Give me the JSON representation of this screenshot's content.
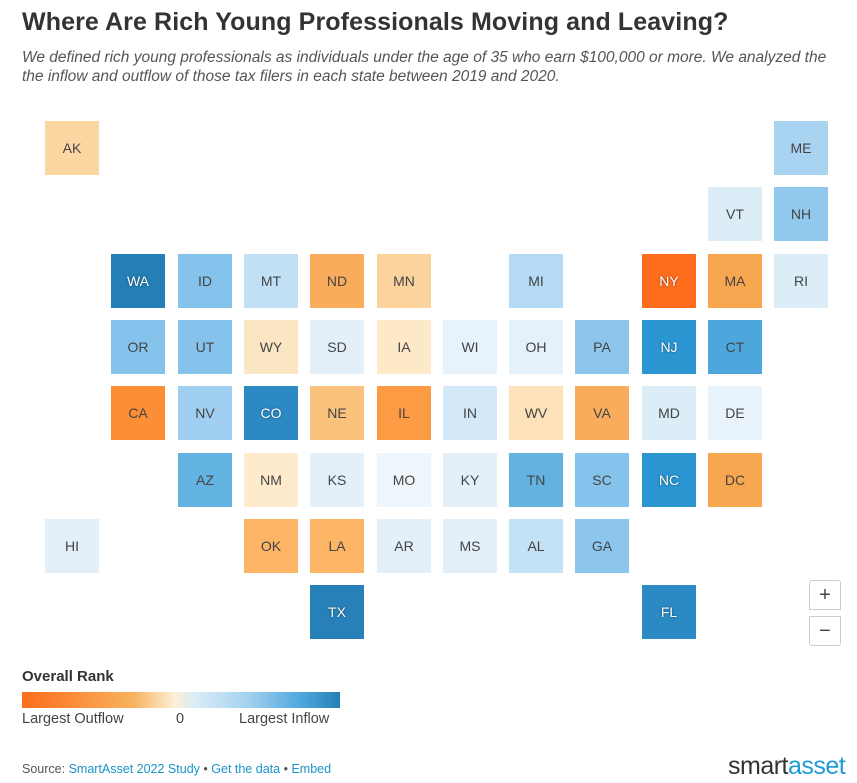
{
  "title": "Where Are Rich Young Professionals Moving and Leaving?",
  "subtitle": "We defined rich young professionals as individuals under the age of 35 who earn $100,000 or more. We analyzed the the inflow and outflow of those tax filers in each state between 2019 and 2020.",
  "chart_data": {
    "type": "heatmap",
    "title": "Where Are Rich Young Professionals Moving and Leaving?",
    "layout": "US state tile grid map",
    "color_scale": {
      "label": "Overall Rank",
      "low_label": "Largest Outflow",
      "mid_label": "0",
      "high_label": "Largest Inflow",
      "colors": [
        "#fd6d1b",
        "#f8b25e",
        "#fbf0d6",
        "#dcedf8",
        "#a8d3f1",
        "#4ea7dc",
        "#237fb5"
      ]
    },
    "states": [
      {
        "abbr": "AK",
        "row": 0,
        "col": 0,
        "color": "#fdd7a2"
      },
      {
        "abbr": "ME",
        "row": 0,
        "col": 11,
        "color": "#a8d3f1"
      },
      {
        "abbr": "VT",
        "row": 1,
        "col": 10,
        "color": "#dcedf8"
      },
      {
        "abbr": "NH",
        "row": 1,
        "col": 11,
        "color": "#91c9ee"
      },
      {
        "abbr": "WA",
        "row": 2,
        "col": 1,
        "color": "#237fb5",
        "dark": true
      },
      {
        "abbr": "ID",
        "row": 2,
        "col": 2,
        "color": "#85c3ec"
      },
      {
        "abbr": "MT",
        "row": 2,
        "col": 3,
        "color": "#c1e0f6"
      },
      {
        "abbr": "ND",
        "row": 2,
        "col": 4,
        "color": "#f9ac5b"
      },
      {
        "abbr": "MN",
        "row": 2,
        "col": 5,
        "color": "#fcd39c"
      },
      {
        "abbr": "MI",
        "row": 2,
        "col": 7,
        "color": "#b5daf5"
      },
      {
        "abbr": "NY",
        "row": 2,
        "col": 9,
        "color": "#fd6d1b",
        "dark": true
      },
      {
        "abbr": "MA",
        "row": 2,
        "col": 10,
        "color": "#f9a651"
      },
      {
        "abbr": "RI",
        "row": 2,
        "col": 11,
        "color": "#dcedf8"
      },
      {
        "abbr": "OR",
        "row": 3,
        "col": 1,
        "color": "#86c3ec"
      },
      {
        "abbr": "UT",
        "row": 3,
        "col": 2,
        "color": "#86c3ec"
      },
      {
        "abbr": "WY",
        "row": 3,
        "col": 3,
        "color": "#fbe6c4"
      },
      {
        "abbr": "SD",
        "row": 3,
        "col": 4,
        "color": "#e3f0f9"
      },
      {
        "abbr": "IA",
        "row": 3,
        "col": 5,
        "color": "#fde8c8"
      },
      {
        "abbr": "WI",
        "row": 3,
        "col": 6,
        "color": "#e7f2fa"
      },
      {
        "abbr": "OH",
        "row": 3,
        "col": 7,
        "color": "#e5f1fa"
      },
      {
        "abbr": "PA",
        "row": 3,
        "col": 8,
        "color": "#8cc6ed"
      },
      {
        "abbr": "NJ",
        "row": 3,
        "col": 9,
        "color": "#2b95d2",
        "dark": true
      },
      {
        "abbr": "CT",
        "row": 3,
        "col": 10,
        "color": "#4ea7dc"
      },
      {
        "abbr": "CA",
        "row": 4,
        "col": 1,
        "color": "#fc8e35"
      },
      {
        "abbr": "NV",
        "row": 4,
        "col": 2,
        "color": "#a0cff1"
      },
      {
        "abbr": "CO",
        "row": 4,
        "col": 3,
        "color": "#2b8ac4",
        "dark": true
      },
      {
        "abbr": "NE",
        "row": 4,
        "col": 4,
        "color": "#fbc27e"
      },
      {
        "abbr": "IL",
        "row": 4,
        "col": 5,
        "color": "#fc9b43"
      },
      {
        "abbr": "IN",
        "row": 4,
        "col": 6,
        "color": "#d3e9f8"
      },
      {
        "abbr": "WV",
        "row": 4,
        "col": 7,
        "color": "#fde2b9"
      },
      {
        "abbr": "VA",
        "row": 4,
        "col": 8,
        "color": "#f9ad5c"
      },
      {
        "abbr": "MD",
        "row": 4,
        "col": 9,
        "color": "#dcedf8"
      },
      {
        "abbr": "DE",
        "row": 4,
        "col": 10,
        "color": "#e8f3fb"
      },
      {
        "abbr": "AZ",
        "row": 5,
        "col": 2,
        "color": "#62b2e2"
      },
      {
        "abbr": "NM",
        "row": 5,
        "col": 3,
        "color": "#fdebcc"
      },
      {
        "abbr": "KS",
        "row": 5,
        "col": 4,
        "color": "#e3f0f9"
      },
      {
        "abbr": "MO",
        "row": 5,
        "col": 5,
        "color": "#eef6fb"
      },
      {
        "abbr": "KY",
        "row": 5,
        "col": 6,
        "color": "#e3f0f9"
      },
      {
        "abbr": "TN",
        "row": 5,
        "col": 7,
        "color": "#64b2e0"
      },
      {
        "abbr": "SC",
        "row": 5,
        "col": 8,
        "color": "#86c3ec"
      },
      {
        "abbr": "NC",
        "row": 5,
        "col": 9,
        "color": "#2b95d2",
        "dark": true
      },
      {
        "abbr": "DC",
        "row": 5,
        "col": 10,
        "color": "#f9a651"
      },
      {
        "abbr": "HI",
        "row": 6,
        "col": 0,
        "color": "#e3f0f9"
      },
      {
        "abbr": "OK",
        "row": 6,
        "col": 3,
        "color": "#fbb565"
      },
      {
        "abbr": "LA",
        "row": 6,
        "col": 4,
        "color": "#fbb565"
      },
      {
        "abbr": "AR",
        "row": 6,
        "col": 5,
        "color": "#e3f0f9"
      },
      {
        "abbr": "MS",
        "row": 6,
        "col": 6,
        "color": "#e3f0f9"
      },
      {
        "abbr": "AL",
        "row": 6,
        "col": 7,
        "color": "#c4e2f6"
      },
      {
        "abbr": "GA",
        "row": 6,
        "col": 8,
        "color": "#8cc6ed"
      },
      {
        "abbr": "TX",
        "row": 7,
        "col": 4,
        "color": "#2880b8",
        "dark": true
      },
      {
        "abbr": "FL",
        "row": 7,
        "col": 9,
        "color": "#2b8ac4",
        "dark": true
      }
    ]
  },
  "zoom": {
    "in": "+",
    "out": "−"
  },
  "footer": {
    "source_label": "Source:",
    "study_link": "SmartAsset 2022 Study",
    "data_link": "Get the data",
    "embed_link": "Embed",
    "sep": "•",
    "brand_a": "smart",
    "brand_b": "asset"
  }
}
